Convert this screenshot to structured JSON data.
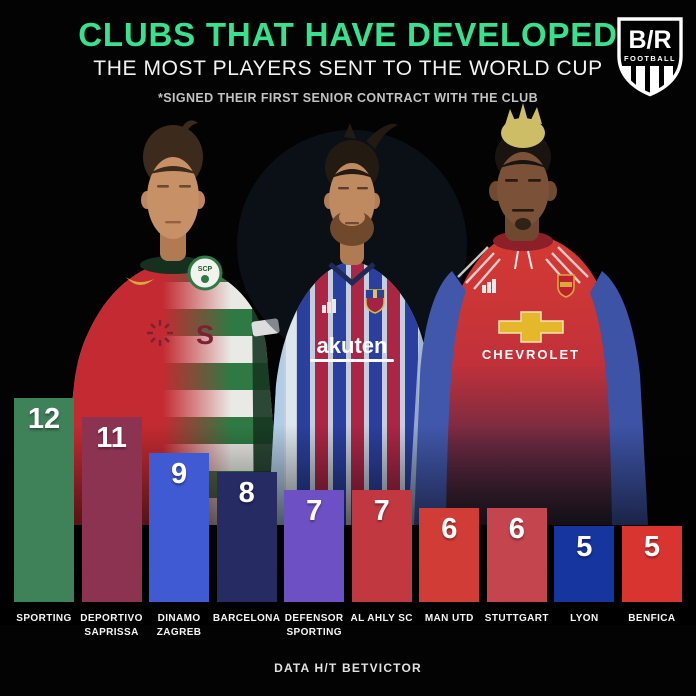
{
  "header": {
    "title": "CLUBS THAT HAVE DEVELOPED",
    "subtitle": "THE MOST PLAYERS SENT TO THE WORLD CUP",
    "note": "*SIGNED THEIR FIRST SENIOR CONTRACT WITH THE CLUB"
  },
  "logo": {
    "monogram": "B/R",
    "word": "FOOTBALL"
  },
  "players": {
    "ronaldo": {
      "crest_text": "SCP",
      "sponsor_text": "S"
    },
    "messi": {
      "sponsor_text": "akuten"
    },
    "pogba": {
      "sponsor_text": "CHEVROLET"
    }
  },
  "chart_data": {
    "type": "bar",
    "categories": [
      "SPORTING",
      "DEPORTIVO SAPRISSA",
      "DINAMO ZAGREB",
      "BARCELONA",
      "DEFENSOR SPORTING",
      "AL AHLY SC",
      "MAN UTD",
      "STUTTGART",
      "LYON",
      "BENFICA"
    ],
    "values": [
      12,
      11,
      9,
      8,
      7,
      7,
      6,
      6,
      5,
      5
    ],
    "bar_colors": [
      "#3f8158",
      "#8c3352",
      "#3f5ad2",
      "#262c63",
      "#6d50c4",
      "#c23840",
      "#d13c36",
      "#c4454d",
      "#16359e",
      "#da3430"
    ],
    "title": "CLUBS THAT HAVE DEVELOPED THE MOST PLAYERS SENT TO THE WORLD CUP",
    "xlabel": "",
    "ylabel": "",
    "ylim": [
      0,
      12
    ],
    "value_labels_shown": true,
    "grid": false,
    "legend": false
  },
  "footer": {
    "credit": "DATA H/T BETVICTOR"
  },
  "colors": {
    "accent_green": "#37e18d",
    "background": "#030303"
  }
}
